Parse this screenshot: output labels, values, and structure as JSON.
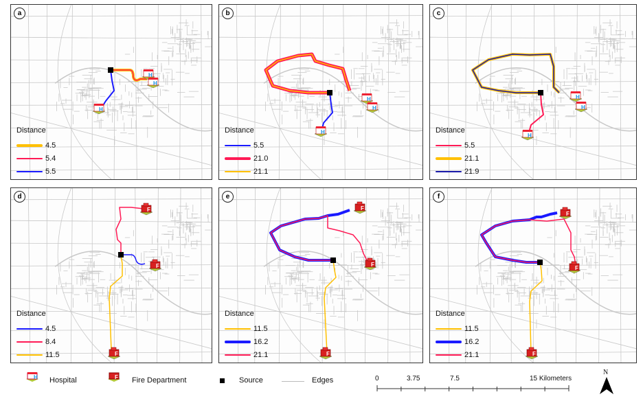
{
  "panels": [
    {
      "id": "a",
      "label": "a",
      "type": "hospital",
      "legend_title": "Distance",
      "routes": [
        {
          "distance": "4.5",
          "color": "#ffc000",
          "style": "thick"
        },
        {
          "distance": "5.4",
          "color": "#ff1a55",
          "style": "thin"
        },
        {
          "distance": "5.5",
          "color": "#1a1aff",
          "style": "thin"
        }
      ]
    },
    {
      "id": "b",
      "label": "b",
      "type": "hospital",
      "legend_title": "Distance",
      "routes": [
        {
          "distance": "5.5",
          "color": "#1a1aff",
          "style": "thin"
        },
        {
          "distance": "21.0",
          "color": "#ff1a55",
          "style": "thick"
        },
        {
          "distance": "21.1",
          "color": "#ffc000",
          "style": "thin"
        }
      ]
    },
    {
      "id": "c",
      "label": "c",
      "type": "hospital",
      "legend_title": "Distance",
      "routes": [
        {
          "distance": "5.5",
          "color": "#ff1a55",
          "style": "thin"
        },
        {
          "distance": "21.1",
          "color": "#ffc000",
          "style": "thick"
        },
        {
          "distance": "21.9",
          "color": "#1a1aaa",
          "style": "thin"
        }
      ]
    },
    {
      "id": "d",
      "label": "d",
      "type": "fire",
      "legend_title": "Distance",
      "routes": [
        {
          "distance": "4.5",
          "color": "#1a1aff",
          "style": "thin"
        },
        {
          "distance": "8.4",
          "color": "#ff1a55",
          "style": "thin"
        },
        {
          "distance": "11.5",
          "color": "#ffc000",
          "style": "thin"
        }
      ]
    },
    {
      "id": "e",
      "label": "e",
      "type": "fire",
      "legend_title": "Distance",
      "routes": [
        {
          "distance": "11.5",
          "color": "#ffc000",
          "style": "thin"
        },
        {
          "distance": "16.2",
          "color": "#1a1aff",
          "style": "thick"
        },
        {
          "distance": "21.1",
          "color": "#ff1a55",
          "style": "thin"
        }
      ]
    },
    {
      "id": "f",
      "label": "f",
      "type": "fire",
      "legend_title": "Distance",
      "routes": [
        {
          "distance": "11.5",
          "color": "#ffc000",
          "style": "thin"
        },
        {
          "distance": "16.2",
          "color": "#1a1aff",
          "style": "thick"
        },
        {
          "distance": "21.1",
          "color": "#ff1a55",
          "style": "thin"
        }
      ]
    }
  ],
  "map_legend": {
    "hospital": "Hospital",
    "fire_department": "Fire Department",
    "source": "Source",
    "edges": "Edges"
  },
  "scale_bar": {
    "ticks": [
      "0",
      "3.75",
      "7.5",
      "15 Kilometers"
    ],
    "unit": "Kilometers"
  },
  "north_arrow": {
    "label": "N"
  },
  "colors": {
    "edges": "#c8c8c8",
    "source": "#000000",
    "yellow": "#ffc000",
    "red": "#ff1a55",
    "blue": "#1a1aff"
  }
}
